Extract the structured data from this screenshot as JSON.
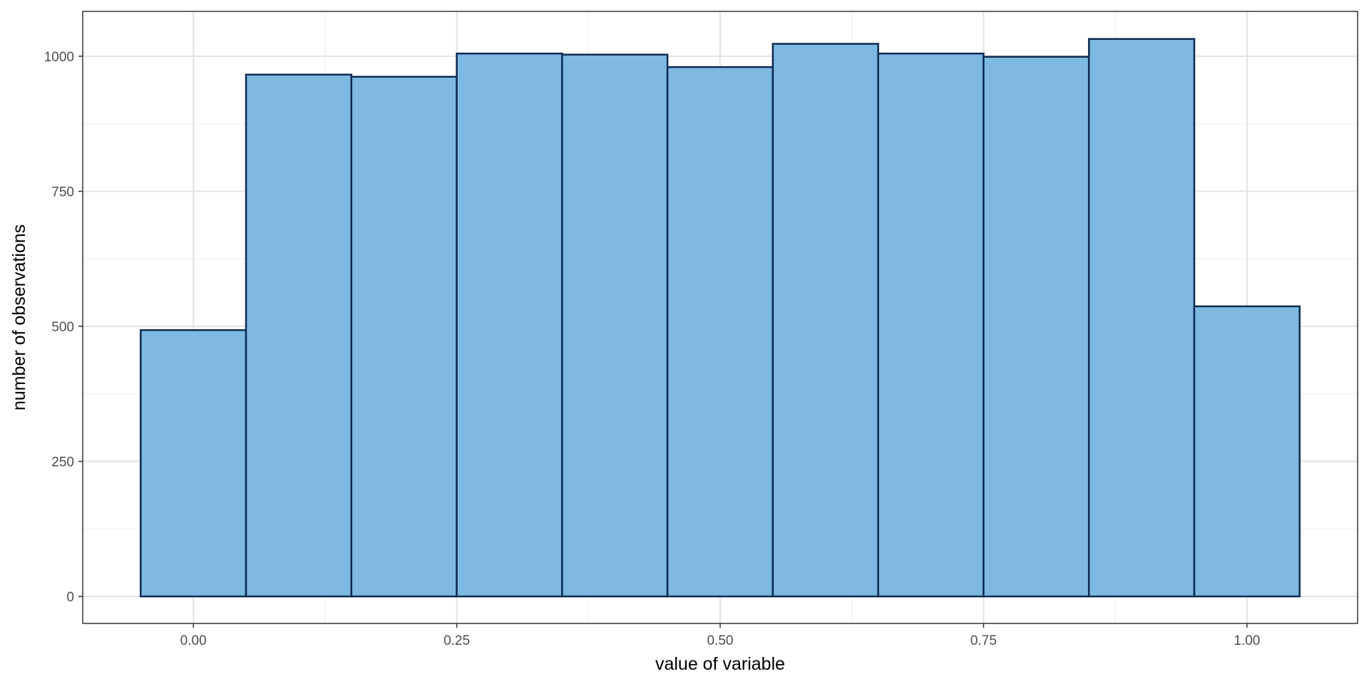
{
  "chart_data": {
    "type": "bar",
    "subtype": "histogram",
    "xlabel": "value of variable",
    "ylabel": "number of observations",
    "xlim": [
      -0.105,
      1.105
    ],
    "ylim": [
      -50,
      1083
    ],
    "x_ticks": [
      0.0,
      0.25,
      0.5,
      0.75,
      1.0
    ],
    "x_tick_labels": [
      "0.00",
      "0.25",
      "0.50",
      "0.75",
      "1.00"
    ],
    "y_ticks": [
      0,
      250,
      500,
      750,
      1000
    ],
    "y_tick_labels": [
      "0",
      "250",
      "500",
      "750",
      "1000"
    ],
    "x_minor": [
      0.125,
      0.375,
      0.625,
      0.875
    ],
    "y_minor": [
      125,
      375,
      625,
      875
    ],
    "bins": [
      {
        "x_start": -0.05,
        "x_end": 0.05,
        "count": 493
      },
      {
        "x_start": 0.05,
        "x_end": 0.15,
        "count": 966
      },
      {
        "x_start": 0.15,
        "x_end": 0.25,
        "count": 962
      },
      {
        "x_start": 0.25,
        "x_end": 0.35,
        "count": 1005
      },
      {
        "x_start": 0.35,
        "x_end": 0.45,
        "count": 1003
      },
      {
        "x_start": 0.45,
        "x_end": 0.55,
        "count": 980
      },
      {
        "x_start": 0.55,
        "x_end": 0.65,
        "count": 1023
      },
      {
        "x_start": 0.65,
        "x_end": 0.75,
        "count": 1005
      },
      {
        "x_start": 0.75,
        "x_end": 0.85,
        "count": 999
      },
      {
        "x_start": 0.85,
        "x_end": 0.95,
        "count": 1032
      },
      {
        "x_start": 0.95,
        "x_end": 1.05,
        "count": 537
      }
    ],
    "grid": true,
    "legend": "none",
    "bar_fill": "#7db9e1",
    "bar_outline": "#0d2a52"
  }
}
